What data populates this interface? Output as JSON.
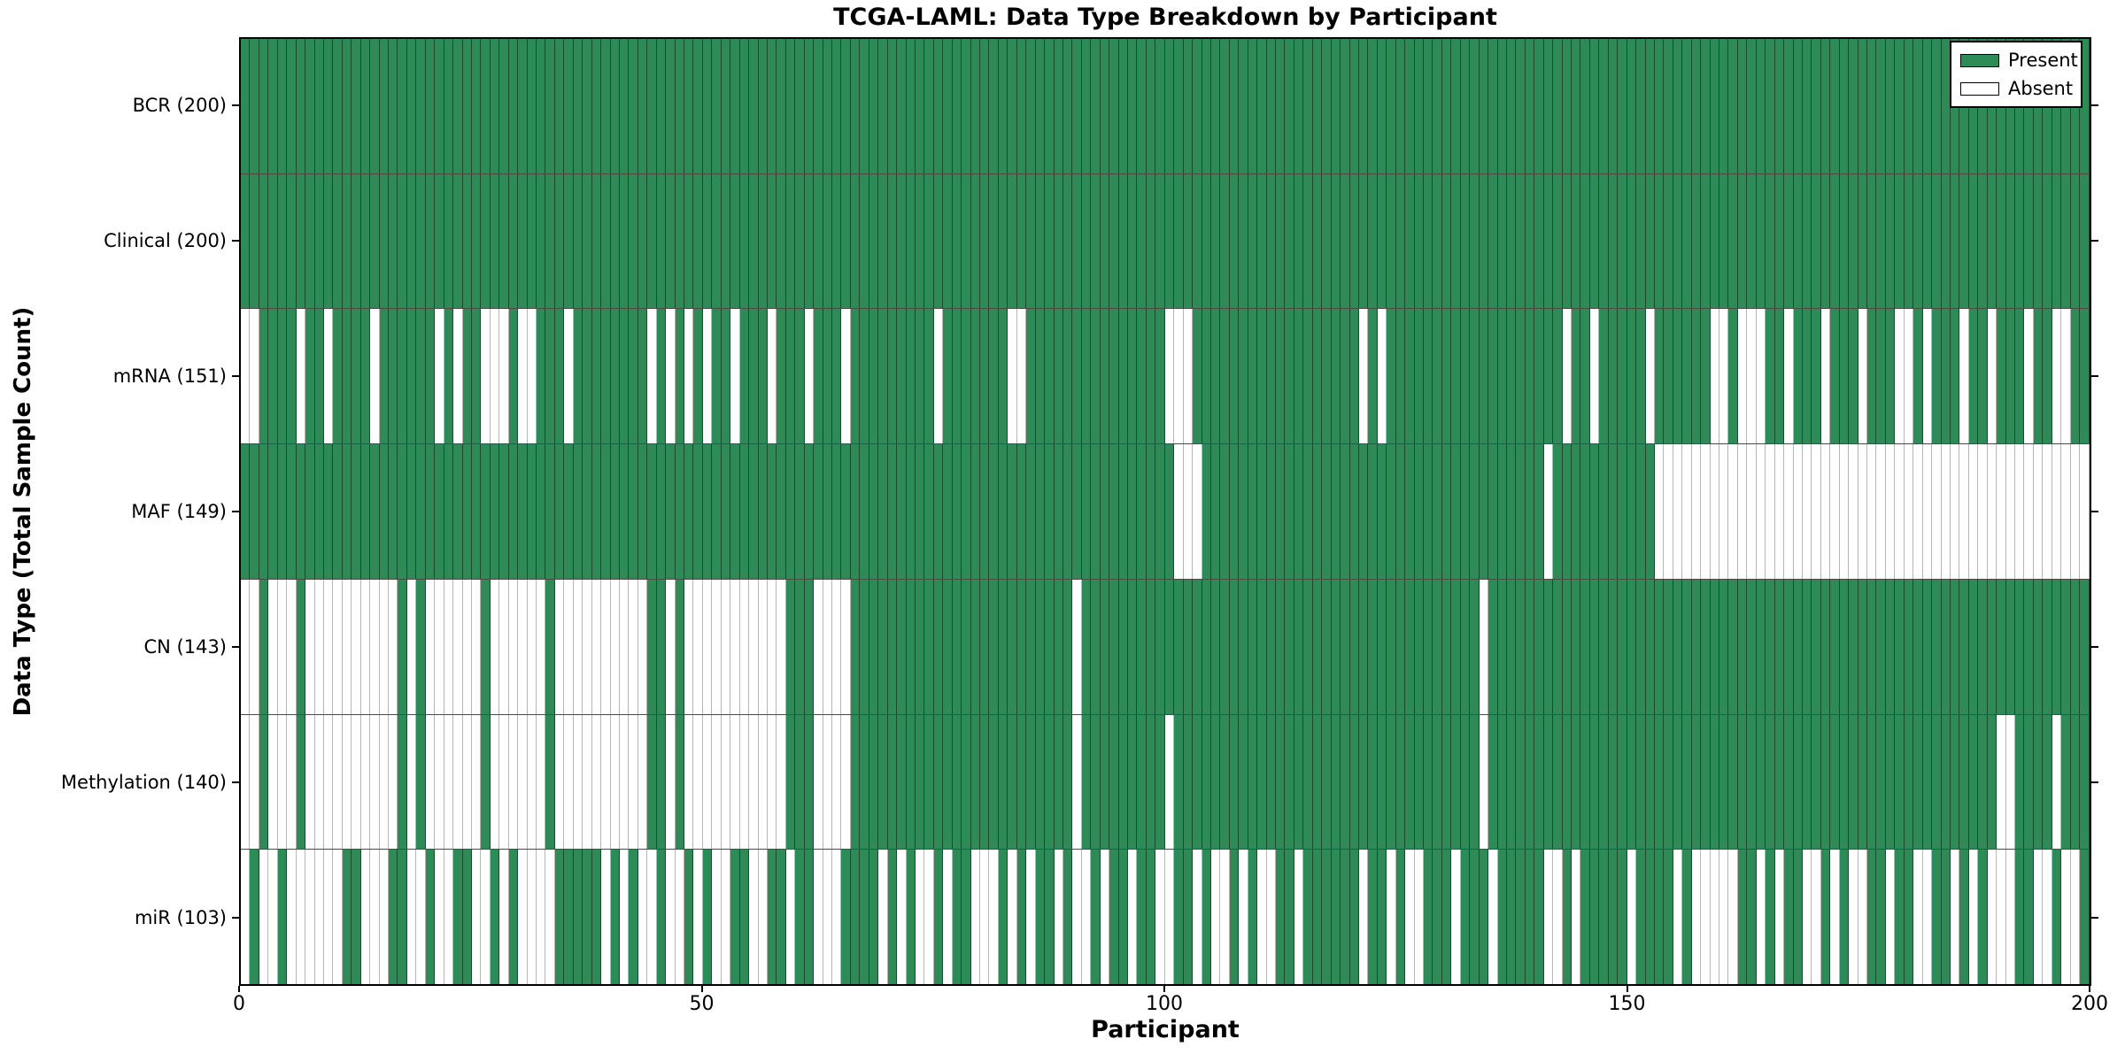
{
  "figure": {
    "title": "TCGA-LAML: Data Type Breakdown by Participant",
    "xlabel": "Participant",
    "ylabel": "Data Type (Total Sample Count)"
  },
  "legend": {
    "present_label": "Present",
    "absent_label": "Absent",
    "position": "upper right"
  },
  "colors": {
    "present": "#2e8b57",
    "absent": "#ffffff",
    "gridline": "#4a4a4a",
    "spine": "#000000"
  },
  "chart_data": {
    "type": "heatmap",
    "title": "TCGA-LAML: Data Type Breakdown by Participant",
    "xlabel": "Participant",
    "ylabel": "Data Type (Total Sample Count)",
    "x_axis": {
      "min": 0,
      "max": 200,
      "ticks": [
        "0",
        "50",
        "100",
        "150",
        "200"
      ]
    },
    "participants": 200,
    "legend_entries": [
      "Present",
      "Absent"
    ],
    "legend_position": "upper right",
    "grid": "horizontal row separators only",
    "pattern_encoding": "one char per participant, left to right: 1 = Present (green), 0 = Absent (white)",
    "rows": [
      {
        "data_type": "BCR",
        "label": "BCR (200)",
        "present_count": 200,
        "pattern": "11111111111111111111111111111111111111111111111111111111111111111111111111111111111111111111111111111111111111111111111111111111111111111111111111111111111111111111111111111111111111111111111111111111"
      },
      {
        "data_type": "Clinical",
        "label": "Clinical (200)",
        "present_count": 200,
        "pattern": "11111111111111111111111111111111111111111111111111111111111111111111111111111111111111111111111111111111111111111111111111111111111111111111111111111111111111111111111111111111111111111111111111111111"
      },
      {
        "data_type": "mRNA",
        "label": "mRNA (151)",
        "present_count": 151,
        "pattern": "00111101101111011111101011000100111011111111010101011011101110111011111111101111111001111111111111110001111111111111111110101111111111111111111011011111011111100100011011101110111001011101101110110011"
      },
      {
        "data_type": "MAF",
        "label": "MAF (149)",
        "present_count": 149,
        "pattern": "11111111111111111111111111111111111111111111111111111111111111111111111111111111111111111111111111111000111111111111111111111111111111111111101111111111100000000000000000000000000000000000000000000000"
      },
      {
        "data_type": "CN",
        "label": "CN (143)",
        "present_count": 143,
        "pattern": "00100010000000000101000000100000010000000000110100000000000111000011111111111111111111111101111111111111111111111111111111111111111111011111111111111111111111111111111111111111111111111111111111111111"
      },
      {
        "data_type": "Methylation",
        "label": "Methylation (140)",
        "present_count": 140,
        "pattern": "00100010000000000101000000100000010000000000110100000000000111000011111111111111111111111101111111110111111111111111111111111111111111011111111111111111111111111111111111111111111111111111110011110111111111"
      },
      {
        "data_type": "miR",
        "label": "miR (103)",
        "present_count": 103,
        "pattern": "01001000000110001100100110010100001111101010010010100110011011000111101010010110001010110100101101100110100101001101111110110100111011101111100101111101111010000011010110010100110110011010100011001001"
      }
    ]
  }
}
